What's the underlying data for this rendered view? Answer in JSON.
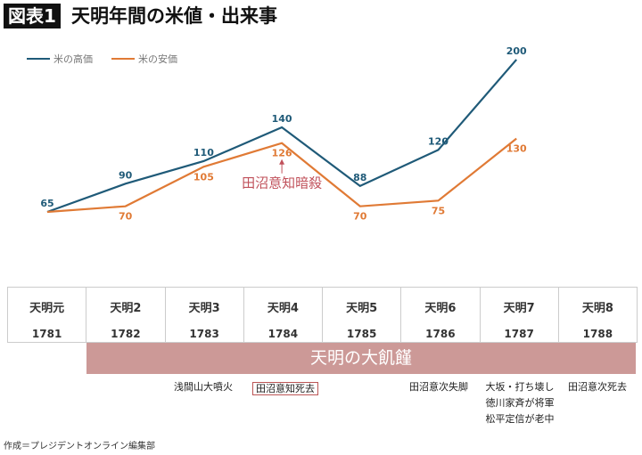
{
  "header": {
    "badge": "図表1",
    "title": "天明年間の米値・出来事"
  },
  "chart_data": {
    "type": "line",
    "categories": [
      "1781",
      "1782",
      "1783",
      "1784",
      "1785",
      "1786",
      "1787"
    ],
    "series": [
      {
        "name": "米の高価",
        "color": "#1f5a78",
        "values": [
          65,
          90,
          110,
          140,
          88,
          120,
          200
        ]
      },
      {
        "name": "米の安価",
        "color": "#e07a35",
        "values": [
          65,
          70,
          105,
          126,
          70,
          75,
          130
        ]
      }
    ],
    "legend_placement": "top-left",
    "grid": false,
    "annotation": {
      "text": "田沼意知暗殺",
      "category": "1784",
      "color": "#c0505a"
    }
  },
  "table": {
    "eras": [
      "天明元",
      "天明2",
      "天明3",
      "天明4",
      "天明5",
      "天明6",
      "天明7",
      "天明8"
    ],
    "years": [
      "1781",
      "1782",
      "1783",
      "1784",
      "1785",
      "1786",
      "1787",
      "1788"
    ]
  },
  "famine": "天明の大飢饉",
  "events": {
    "e1783": "浅間山大噴火",
    "e1784": "田沼意知死去",
    "e1786": "田沼意次失脚",
    "e1787": [
      "大坂・打ち壊し",
      "徳川家斉が将軍",
      "松平定信が老中"
    ],
    "e1788": "田沼意次死去"
  },
  "credit": "作成＝プレジデントオンライン編集部"
}
